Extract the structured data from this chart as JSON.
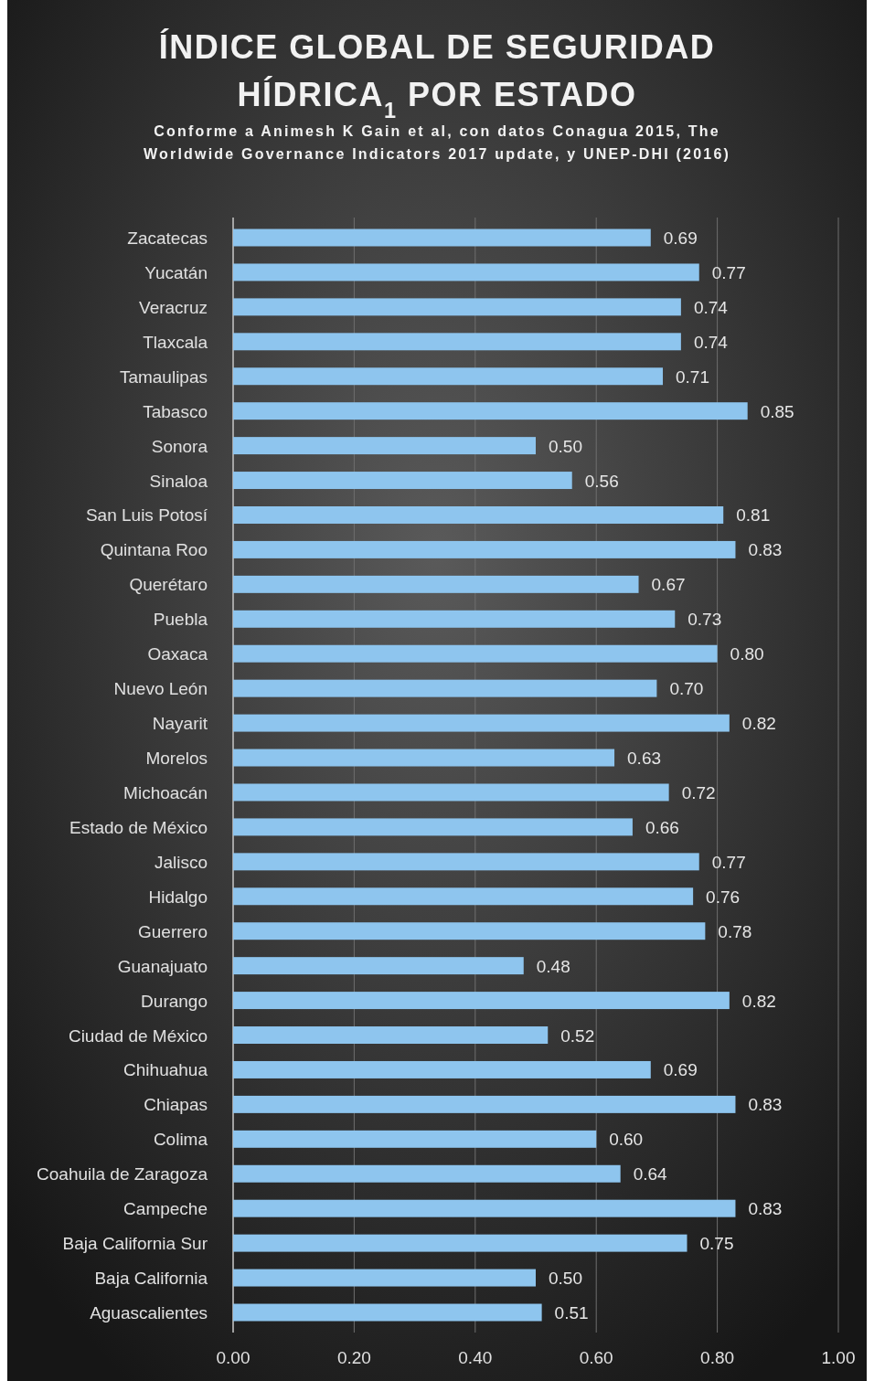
{
  "chart_data": {
    "type": "bar",
    "orientation": "horizontal",
    "title": "ÍNDICE GLOBAL DE SEGURIDAD HÍDRICA$_{1}$ POR ESTADO",
    "subtitle": "Conforme a Animesh K Gain et al, con datos Conagua 2015, The Worldwide Governance Indicators 2017 update, y UNEP-DHI (2016)",
    "categories": [
      "Zacatecas",
      "Yucatán",
      "Veracruz",
      "Tlaxcala",
      "Tamaulipas",
      "Tabasco",
      "Sonora",
      "Sinaloa",
      "San Luis Potosí",
      "Quintana Roo",
      "Querétaro",
      "Puebla",
      "Oaxaca",
      "Nuevo León",
      "Nayarit",
      "Morelos",
      "Michoacán",
      "Estado de México",
      "Jalisco",
      "Hidalgo",
      "Guerrero",
      "Guanajuato",
      "Durango",
      "Ciudad de México",
      "Chihuahua",
      "Chiapas",
      "Colima",
      "Coahuila de Zaragoza",
      "Campeche",
      "Baja California Sur",
      "Baja California",
      "Aguascalientes"
    ],
    "values": [
      0.69,
      0.77,
      0.74,
      0.74,
      0.71,
      0.85,
      0.5,
      0.56,
      0.81,
      0.83,
      0.67,
      0.73,
      0.8,
      0.7,
      0.82,
      0.63,
      0.72,
      0.66,
      0.77,
      0.76,
      0.78,
      0.48,
      0.82,
      0.52,
      0.69,
      0.83,
      0.6,
      0.64,
      0.83,
      0.75,
      0.5,
      0.51
    ],
    "value_labels": [
      "0.69",
      "0.77",
      "0.74",
      "0.74",
      "0.71",
      "0.85",
      "0.50",
      "0.56",
      "0.81",
      "0.83",
      "0.67",
      "0.73",
      "0.80",
      "0.70",
      "0.82",
      "0.63",
      "0.72",
      "0.66",
      "0.77",
      "0.76",
      "0.78",
      "0.48",
      "0.82",
      "0.52",
      "0.69",
      "0.83",
      "0.60",
      "0.64",
      "0.83",
      "0.75",
      "0.50",
      "0.51"
    ],
    "color": "#8ec5ee",
    "xlim": [
      0,
      1
    ],
    "xticks": [
      {
        "value": 0,
        "label": "0.00"
      },
      {
        "value": 0.2,
        "label": "0.20"
      },
      {
        "value": 0.4,
        "label": "0.40"
      },
      {
        "value": 0.6,
        "label": "0.60"
      },
      {
        "value": 0.8,
        "label": "0.80"
      },
      {
        "value": 1,
        "label": "1.00"
      }
    ],
    "grid": "x"
  }
}
